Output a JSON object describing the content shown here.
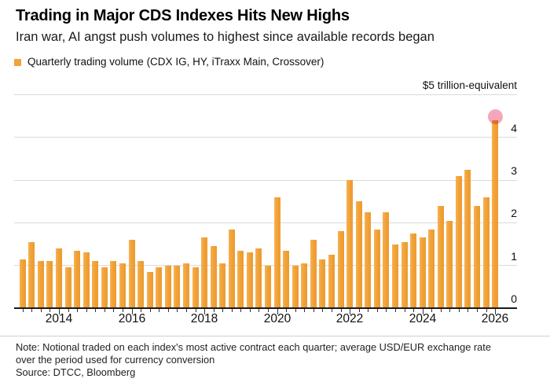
{
  "header": {
    "title": "Trading in Major CDS Indexes Hits New Highs",
    "subtitle": "Iran war, AI angst push volumes to highest since available records began"
  },
  "legend": {
    "label": "Quarterly trading volume (CDX IG, HY, iTraxx Main, Crossover)"
  },
  "y_axis": {
    "unit_label": "$5 trillion-equivalent",
    "tick_labels": [
      "0",
      "1",
      "2",
      "3",
      "4"
    ]
  },
  "footer": {
    "note_line1": "Note: Notional traded on each index's most active contract each quarter; average USD/EUR exchange rate",
    "note_line2": "over the period used for currency conversion",
    "source": "Source: DTCC, Bloomberg"
  },
  "colors": {
    "bar": "#F2A33B",
    "bar_gradient_light": "#F7B254",
    "bar_gradient_mid": "#F1A238",
    "bar_gradient_dark": "#EC9A2F",
    "highlight_dot": "#F4A0B4",
    "gridline": "#DADADA",
    "axis_line": "#1A1A1A"
  },
  "chart_data": {
    "type": "bar",
    "title": "Trading in Major CDS Indexes Hits New Highs",
    "xlabel": "",
    "ylabel": "USD trillion-equivalent",
    "ylim": [
      0,
      5
    ],
    "grid": "horizontal",
    "legend_position": "top-left",
    "x": [
      "2013 Q1",
      "2013 Q2",
      "2013 Q3",
      "2013 Q4",
      "2014 Q1",
      "2014 Q2",
      "2014 Q3",
      "2014 Q4",
      "2015 Q1",
      "2015 Q2",
      "2015 Q3",
      "2015 Q4",
      "2016 Q1",
      "2016 Q2",
      "2016 Q3",
      "2016 Q4",
      "2017 Q1",
      "2017 Q2",
      "2017 Q3",
      "2017 Q4",
      "2018 Q1",
      "2018 Q2",
      "2018 Q3",
      "2018 Q4",
      "2019 Q1",
      "2019 Q2",
      "2019 Q3",
      "2019 Q4",
      "2020 Q1",
      "2020 Q2",
      "2020 Q3",
      "2020 Q4",
      "2021 Q1",
      "2021 Q2",
      "2021 Q3",
      "2021 Q4",
      "2022 Q1",
      "2022 Q2",
      "2022 Q3",
      "2022 Q4",
      "2023 Q1",
      "2023 Q2",
      "2023 Q3",
      "2023 Q4",
      "2024 Q1",
      "2024 Q2",
      "2024 Q3",
      "2024 Q4",
      "2025 Q1",
      "2025 Q2",
      "2025 Q3",
      "2025 Q4",
      "2026 Q1"
    ],
    "values": [
      1.15,
      1.55,
      1.1,
      1.1,
      1.4,
      0.95,
      1.35,
      1.3,
      1.1,
      0.95,
      1.1,
      1.05,
      1.6,
      1.1,
      0.85,
      0.95,
      1.0,
      1.0,
      1.05,
      0.95,
      1.65,
      1.45,
      1.05,
      1.85,
      1.35,
      1.3,
      1.4,
      1.0,
      2.6,
      1.35,
      1.0,
      1.05,
      1.6,
      1.15,
      1.25,
      1.8,
      3.0,
      2.5,
      2.25,
      1.85,
      2.25,
      1.5,
      1.55,
      1.75,
      1.65,
      1.85,
      2.4,
      2.05,
      3.1,
      3.25,
      2.4,
      2.6,
      4.4
    ],
    "x_year_labels": [
      {
        "label": "2014",
        "bar_index": 4
      },
      {
        "label": "2016",
        "bar_index": 12
      },
      {
        "label": "2018",
        "bar_index": 20
      },
      {
        "label": "2020",
        "bar_index": 28
      },
      {
        "label": "2022",
        "bar_index": 36
      },
      {
        "label": "2024",
        "bar_index": 44
      },
      {
        "label": "2026",
        "bar_index": 52
      }
    ],
    "highlight": {
      "bar_index": 52,
      "marker": "dot",
      "meaning": "record high"
    }
  }
}
